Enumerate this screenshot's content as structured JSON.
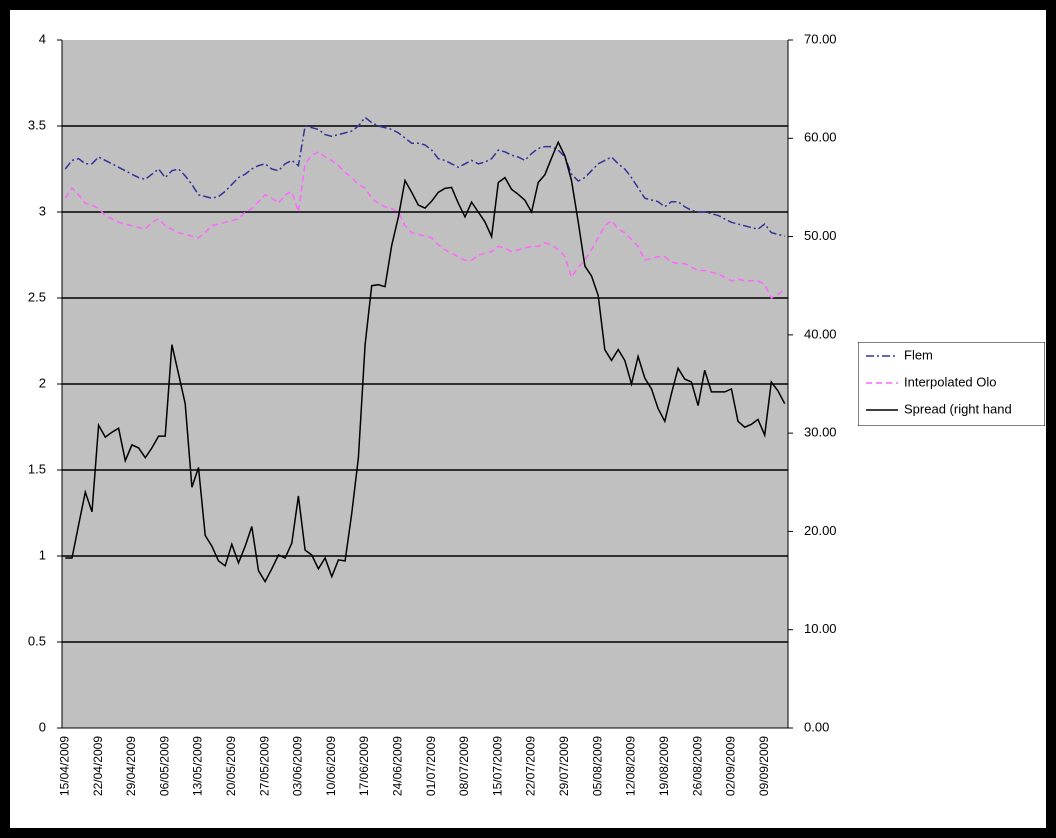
{
  "chart_data": {
    "type": "line",
    "categories": [
      "15/04/2009",
      null,
      null,
      null,
      null,
      "22/04/2009",
      null,
      null,
      null,
      null,
      "29/04/2009",
      null,
      null,
      null,
      null,
      "06/05/2009",
      null,
      null,
      null,
      null,
      "13/05/2009",
      null,
      null,
      null,
      null,
      "20/05/2009",
      null,
      null,
      null,
      null,
      "27/05/2009",
      null,
      null,
      null,
      null,
      "03/06/2009",
      null,
      null,
      null,
      null,
      "10/06/2009",
      null,
      null,
      null,
      null,
      "17/06/2009",
      null,
      null,
      null,
      null,
      "24/06/2009",
      null,
      null,
      null,
      null,
      "01/07/2009",
      null,
      null,
      null,
      null,
      "08/07/2009",
      null,
      null,
      null,
      null,
      "15/07/2009",
      null,
      null,
      null,
      null,
      "22/07/2009",
      null,
      null,
      null,
      null,
      "29/07/2009",
      null,
      null,
      null,
      null,
      "05/08/2009",
      null,
      null,
      null,
      null,
      "12/08/2009",
      null,
      null,
      null,
      null,
      "19/08/2009",
      null,
      null,
      null,
      null,
      "26/08/2009",
      null,
      null,
      null,
      null,
      "02/09/2009",
      null,
      null,
      null,
      null,
      "09/09/2009",
      null,
      null,
      null
    ],
    "series": [
      {
        "name": "Flem",
        "color": "#333399",
        "dash": "8 3 2 3",
        "values": [
          3.25,
          3.3,
          3.31,
          3.28,
          3.28,
          3.32,
          3.3,
          3.28,
          3.26,
          3.24,
          3.22,
          3.2,
          3.19,
          3.22,
          3.25,
          3.2,
          3.24,
          3.25,
          3.21,
          3.16,
          3.1,
          3.09,
          3.08,
          3.09,
          3.12,
          3.16,
          3.2,
          3.22,
          3.25,
          3.27,
          3.28,
          3.25,
          3.24,
          3.28,
          3.3,
          3.27,
          3.5,
          3.49,
          3.48,
          3.45,
          3.44,
          3.45,
          3.46,
          3.47,
          3.5,
          3.55,
          3.52,
          3.5,
          3.49,
          3.48,
          3.46,
          3.43,
          3.4,
          3.4,
          3.39,
          3.36,
          3.31,
          3.3,
          3.28,
          3.26,
          3.28,
          3.3,
          3.28,
          3.29,
          3.31,
          3.36,
          3.35,
          3.33,
          3.32,
          3.3,
          3.34,
          3.37,
          3.38,
          3.38,
          3.36,
          3.32,
          3.22,
          3.18,
          3.2,
          3.24,
          3.28,
          3.3,
          3.32,
          3.28,
          3.25,
          3.2,
          3.14,
          3.08,
          3.07,
          3.06,
          3.03,
          3.06,
          3.06,
          3.03,
          3.01,
          3.0,
          3.0,
          2.99,
          2.98,
          2.96,
          2.94,
          2.93,
          2.92,
          2.91,
          2.9,
          2.93,
          2.88,
          2.87,
          2.86
        ]
      },
      {
        "name": "Interpolated Olo",
        "color": "#ff66ff",
        "dash": "6 4",
        "values": [
          3.08,
          3.14,
          3.1,
          3.05,
          3.04,
          3.02,
          2.98,
          2.96,
          2.94,
          2.93,
          2.92,
          2.91,
          2.9,
          2.94,
          2.96,
          2.92,
          2.9,
          2.88,
          2.87,
          2.86,
          2.85,
          2.88,
          2.92,
          2.93,
          2.94,
          2.95,
          2.96,
          3.0,
          3.02,
          3.06,
          3.1,
          3.08,
          3.05,
          3.1,
          3.12,
          3.0,
          3.28,
          3.33,
          3.35,
          3.32,
          3.3,
          3.27,
          3.23,
          3.2,
          3.16,
          3.14,
          3.08,
          3.05,
          3.03,
          3.02,
          3.0,
          2.92,
          2.88,
          2.87,
          2.86,
          2.85,
          2.81,
          2.78,
          2.76,
          2.74,
          2.72,
          2.72,
          2.75,
          2.76,
          2.77,
          2.8,
          2.79,
          2.77,
          2.78,
          2.79,
          2.8,
          2.8,
          2.82,
          2.81,
          2.78,
          2.74,
          2.62,
          2.68,
          2.72,
          2.78,
          2.85,
          2.92,
          2.95,
          2.9,
          2.88,
          2.84,
          2.8,
          2.72,
          2.73,
          2.74,
          2.74,
          2.71,
          2.7,
          2.7,
          2.68,
          2.66,
          2.66,
          2.65,
          2.64,
          2.62,
          2.6,
          2.61,
          2.6,
          2.6,
          2.6,
          2.58,
          2.5,
          2.52,
          2.55
        ]
      },
      {
        "name": "Spread (right hand",
        "color": "#000000",
        "axis": "y2",
        "values": [
          17.3,
          17.3,
          20.7,
          24.0,
          22.0,
          30.8,
          29.6,
          30.1,
          30.5,
          27.2,
          28.8,
          28.5,
          27.5,
          28.5,
          29.7,
          29.7,
          39.0,
          36.0,
          33.0,
          24.5,
          26.5,
          19.6,
          18.5,
          17.0,
          16.5,
          18.7,
          16.8,
          18.5,
          20.5,
          16.0,
          14.9,
          16.2,
          17.6,
          17.3,
          18.8,
          23.6,
          18.1,
          17.6,
          16.2,
          17.3,
          15.4,
          17.1,
          17.0,
          21.8,
          27.5,
          39.0,
          45.0,
          45.1,
          44.9,
          49.1,
          52.0,
          55.7,
          54.5,
          53.2,
          52.9,
          53.6,
          54.5,
          54.9,
          55.0,
          53.4,
          52.0,
          53.5,
          52.5,
          51.5,
          50.0,
          55.5,
          56.0,
          54.8,
          54.3,
          53.7,
          52.5,
          55.5,
          56.3,
          58.0,
          59.6,
          58.2,
          55.7,
          51.5,
          47.0,
          46.0,
          44.0,
          38.5,
          37.4,
          38.5,
          37.4,
          35.0,
          37.8,
          35.6,
          34.5,
          32.5,
          31.2,
          34.0,
          36.6,
          35.5,
          35.2,
          32.8,
          36.4,
          34.2,
          34.2,
          34.2,
          34.5,
          31.2,
          30.6,
          30.9,
          31.4,
          29.8,
          35.2,
          34.3,
          33.0
        ]
      }
    ],
    "ylim": [
      0,
      4
    ],
    "yticks": [
      0,
      0.5,
      1,
      1.5,
      2,
      2.5,
      3,
      3.5,
      4
    ],
    "y2lim": [
      0,
      70
    ],
    "y2ticks": [
      {
        "value": 0,
        "label": "0.00"
      },
      {
        "value": 10,
        "label": "10.00"
      },
      {
        "value": 20,
        "label": "20.00"
      },
      {
        "value": 30,
        "label": "30.00"
      },
      {
        "value": 40,
        "label": "40.00"
      },
      {
        "value": 50,
        "label": "50.00"
      },
      {
        "value": 60,
        "label": "60.00"
      },
      {
        "value": 70,
        "label": "70.00"
      }
    ],
    "grid": true,
    "legend": "right",
    "plot_background": "#c0c0c0"
  }
}
